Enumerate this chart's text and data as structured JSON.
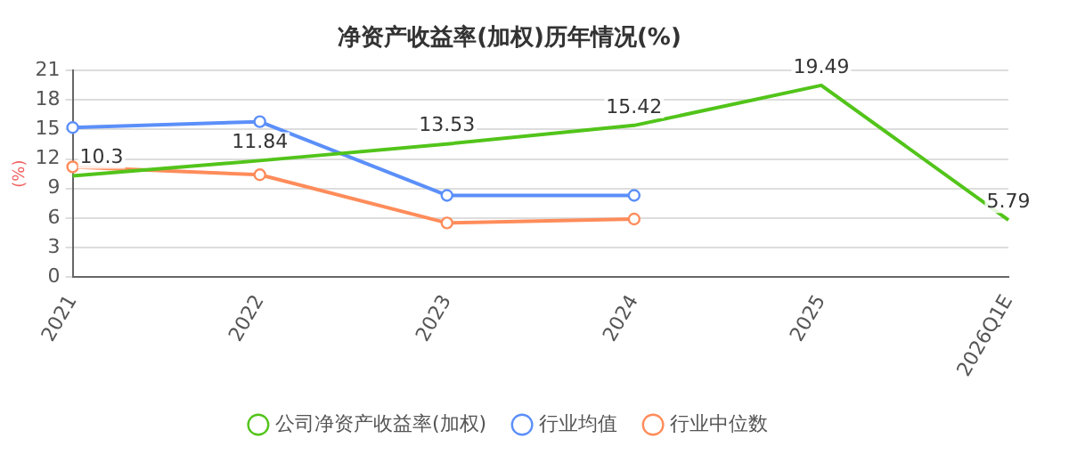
{
  "chart_data": {
    "type": "line",
    "title": "净资产收益率(加权)历年情况(%)",
    "ylabel": "(%)",
    "categories": [
      "2021",
      "2022",
      "2023",
      "2024",
      "2025",
      "2026Q1E"
    ],
    "series": [
      {
        "name": "公司净资产收益率(加权)",
        "color": "#52c41a",
        "values": [
          10.3,
          11.84,
          13.53,
          15.42,
          19.49,
          5.79
        ],
        "marker": "none",
        "value_labels": [
          "10.3",
          "11.84",
          "13.53",
          "15.42",
          "19.49",
          "5.79"
        ]
      },
      {
        "name": "行业均值",
        "color": "#5b8ff9",
        "values": [
          15.2,
          15.8,
          8.3,
          8.3,
          null,
          null
        ]
      },
      {
        "name": "行业中位数",
        "color": "#ff8c5a",
        "values": [
          11.2,
          10.4,
          5.5,
          5.9,
          null,
          null
        ]
      }
    ],
    "ylim": [
      0,
      21
    ],
    "yticks": [
      0,
      3,
      6,
      9,
      12,
      15,
      18,
      21
    ],
    "grid": "y",
    "legend": "bottom",
    "marker": "circle",
    "line_style": "solid"
  }
}
